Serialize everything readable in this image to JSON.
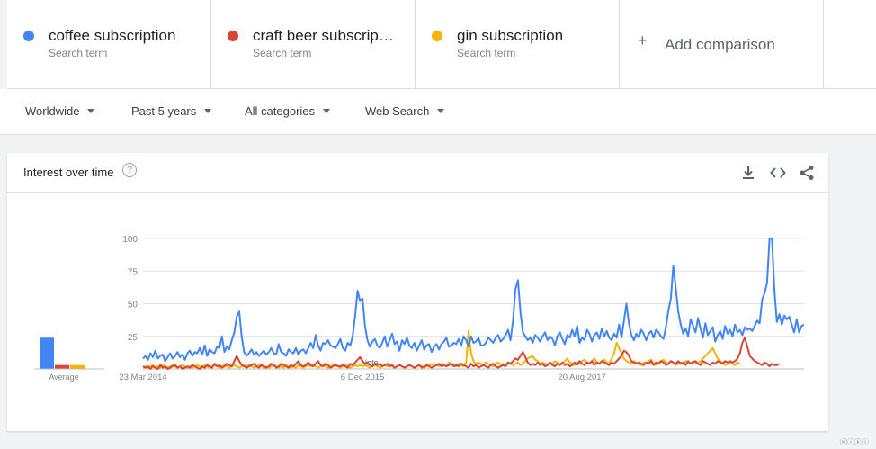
{
  "terms": [
    {
      "name": "coffee subscription",
      "sub": "Search term",
      "color": "#4285f4"
    },
    {
      "name": "craft beer subscrip…",
      "sub": "Search term",
      "color": "#db4437"
    },
    {
      "name": "gin subscription",
      "sub": "Search term",
      "color": "#f4b400"
    }
  ],
  "add_comparison": "Add comparison",
  "filters": {
    "region": "Worldwide",
    "time": "Past 5 years",
    "category": "All categories",
    "search_type": "Web Search"
  },
  "card": {
    "title": "Interest over time",
    "help": "?"
  },
  "watermark": "ⓦⓘⓚⓘ",
  "chart_data": {
    "type": "line",
    "y_ticks": [
      100,
      75,
      50,
      25
    ],
    "ylim": [
      0,
      100
    ],
    "x_tick_labels": [
      "23 Mar 2014",
      "6 Dec 2015",
      "20 Aug 2017"
    ],
    "x_tick_weeks": [
      0,
      89,
      178
    ],
    "note_label": "Note",
    "average_label": "Average",
    "averages": [
      {
        "term": "coffee subscription",
        "value": 24,
        "color": "#4285f4"
      },
      {
        "term": "craft beer subscription",
        "value": 3,
        "color": "#db4437"
      },
      {
        "term": "gin subscription",
        "value": 3,
        "color": "#f4b400"
      }
    ],
    "series": [
      {
        "name": "coffee subscription",
        "color": "#4285f4",
        "values": [
          8,
          10,
          7,
          12,
          9,
          14,
          8,
          10,
          11,
          6,
          9,
          12,
          8,
          10,
          13,
          9,
          11,
          7,
          12,
          14,
          10,
          13,
          12,
          16,
          11,
          18,
          10,
          15,
          13,
          12,
          17,
          16,
          25,
          13,
          17,
          15,
          22,
          28,
          40,
          44,
          25,
          13,
          10,
          12,
          15,
          11,
          13,
          10,
          12,
          14,
          11,
          13,
          16,
          12,
          11,
          19,
          13,
          12,
          10,
          15,
          13,
          12,
          16,
          11,
          14,
          15,
          12,
          16,
          20,
          16,
          26,
          18,
          14,
          20,
          19,
          22,
          18,
          17,
          16,
          19,
          23,
          16,
          14,
          20,
          18,
          25,
          41,
          60,
          52,
          54,
          33,
          22,
          17,
          21,
          23,
          18,
          16,
          20,
          25,
          17,
          22,
          27,
          19,
          21,
          14,
          22,
          19,
          24,
          18,
          16,
          20,
          14,
          18,
          22,
          15,
          18,
          19,
          13,
          17,
          19,
          15,
          19,
          21,
          24,
          17,
          18,
          20,
          19,
          23,
          18,
          25,
          22,
          17,
          25,
          20,
          21,
          24,
          18,
          18,
          20,
          24,
          22,
          20,
          24,
          26,
          21,
          23,
          26,
          30,
          22,
          37,
          61,
          68,
          44,
          28,
          25,
          22,
          24,
          20,
          26,
          24,
          21,
          25,
          28,
          22,
          25,
          23,
          18,
          25,
          28,
          23,
          19,
          26,
          24,
          30,
          25,
          33,
          20,
          24,
          22,
          30,
          27,
          21,
          26,
          28,
          23,
          31,
          25,
          29,
          24,
          22,
          27,
          24,
          34,
          24,
          37,
          50,
          35,
          26,
          22,
          27,
          24,
          30,
          27,
          22,
          27,
          29,
          24,
          30,
          28,
          25,
          23,
          32,
          45,
          54,
          79,
          62,
          44,
          34,
          27,
          31,
          25,
          38,
          33,
          28,
          39,
          31,
          24,
          35,
          26,
          29,
          32,
          21,
          26,
          29,
          23,
          33,
          27,
          30,
          25,
          34,
          28,
          30,
          26,
          32,
          30,
          31,
          29,
          33,
          37,
          35,
          53,
          58,
          66,
          100,
          100,
          60,
          36,
          42,
          34,
          41,
          38,
          40,
          34,
          28,
          38,
          28,
          33,
          34
        ]
      },
      {
        "name": "craft beer subscription",
        "color": "#db4437",
        "values": [
          2,
          1,
          2,
          0,
          2,
          1,
          0,
          3,
          1,
          2,
          0,
          1,
          2,
          3,
          1,
          2,
          0,
          1,
          2,
          1,
          3,
          2,
          1,
          0,
          2,
          1,
          3,
          2,
          1,
          4,
          2,
          3,
          1,
          2,
          4,
          3,
          2,
          6,
          10,
          6,
          3,
          2,
          1,
          2,
          3,
          4,
          2,
          1,
          3,
          2,
          1,
          2,
          4,
          3,
          1,
          2,
          4,
          3,
          2,
          1,
          3,
          2,
          4,
          6,
          3,
          2,
          3,
          5,
          3,
          2,
          4,
          6,
          3,
          2,
          4,
          3,
          1,
          2,
          3,
          2,
          2,
          3,
          2,
          1,
          4,
          3,
          5,
          7,
          9,
          6,
          4,
          5,
          3,
          2,
          4,
          3,
          4,
          2,
          3,
          4,
          2,
          3,
          1,
          2,
          3,
          2,
          1,
          2,
          3,
          2,
          1,
          2,
          3,
          1,
          2,
          3,
          2,
          1,
          2,
          3,
          4,
          2,
          3,
          2,
          3,
          4,
          2,
          3,
          2,
          4,
          3,
          2,
          1,
          4,
          2,
          3,
          1,
          2,
          3,
          2,
          1,
          3,
          4,
          2,
          1,
          2,
          3,
          2,
          5,
          4,
          6,
          8,
          7,
          10,
          13,
          9,
          5,
          3,
          4,
          3,
          5,
          3,
          4,
          2,
          3,
          5,
          3,
          2,
          4,
          3,
          5,
          3,
          4,
          2,
          3,
          5,
          3,
          6,
          4,
          3,
          5,
          4,
          6,
          3,
          5,
          4,
          6,
          5,
          4,
          3,
          5,
          4,
          6,
          8,
          10,
          14,
          13,
          10,
          6,
          5,
          4,
          5,
          4,
          3,
          5,
          4,
          6,
          3,
          5,
          4,
          6,
          5,
          3,
          4,
          6,
          5,
          4,
          6,
          4,
          5,
          3,
          6,
          4,
          5,
          6,
          4,
          3,
          6,
          5,
          4,
          3,
          5,
          4,
          6,
          5,
          4,
          6,
          5,
          6,
          5,
          6,
          8,
          12,
          20,
          24,
          17,
          10,
          8,
          6,
          5,
          4,
          3,
          5,
          4,
          2,
          4,
          3,
          3,
          4
        ]
      },
      {
        "name": "gin subscription",
        "color": "#f4b400",
        "values": [
          1,
          2,
          1,
          2,
          3,
          1,
          2,
          1,
          3,
          2,
          1,
          2,
          3,
          2,
          1,
          2,
          3,
          2,
          1,
          2,
          1,
          2,
          3,
          2,
          1,
          3,
          2,
          1,
          2,
          3,
          2,
          1,
          2,
          3,
          2,
          1,
          2,
          3,
          2,
          1,
          2,
          3,
          2,
          3,
          2,
          1,
          2,
          3,
          2,
          1,
          2,
          1,
          2,
          3,
          2,
          1,
          2,
          1,
          3,
          2,
          1,
          2,
          1,
          3,
          2,
          1,
          2,
          3,
          2,
          3,
          2,
          1,
          2,
          3,
          2,
          1,
          2,
          3,
          4,
          2,
          1,
          2,
          3,
          2,
          1,
          2,
          3,
          2,
          3,
          2,
          3,
          2,
          1,
          2,
          3,
          2,
          1,
          2,
          3,
          2,
          3,
          2,
          1,
          2,
          3,
          2,
          1,
          2,
          3,
          2,
          1,
          2,
          3,
          2,
          1,
          2,
          3,
          4,
          2,
          3,
          2,
          4,
          3,
          2,
          5,
          4,
          3,
          2,
          4,
          3,
          2,
          5,
          29,
          12,
          6,
          4,
          5,
          4,
          3,
          5,
          4,
          3,
          2,
          4,
          5,
          3,
          4,
          3,
          5,
          4,
          3,
          4,
          5,
          3,
          4,
          6,
          8,
          9,
          10,
          7,
          6,
          4,
          5,
          4,
          3,
          5,
          4,
          6,
          5,
          3,
          4,
          6,
          8,
          5,
          4,
          3,
          5,
          4,
          6,
          7,
          5,
          4,
          6,
          8,
          5,
          4,
          6,
          7,
          5,
          4,
          8,
          12,
          20,
          16,
          12,
          8,
          6,
          5,
          4,
          6,
          5,
          4,
          3,
          5,
          4,
          6,
          7,
          4,
          3,
          5,
          6,
          7,
          5,
          4,
          6,
          5,
          3,
          4,
          5,
          4,
          6,
          5,
          4,
          6,
          5,
          4,
          6,
          8,
          10,
          12,
          14,
          16,
          12,
          8,
          6,
          5,
          3,
          4,
          5,
          4,
          3,
          5,
          4
        ]
      }
    ]
  }
}
